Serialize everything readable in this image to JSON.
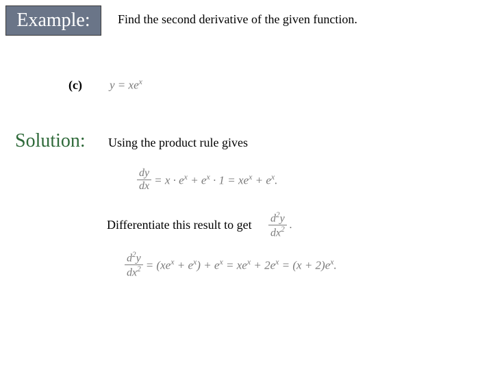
{
  "header": {
    "example_label": "Example:",
    "prompt": "Find the second derivative of the given function."
  },
  "part": {
    "label": "(c)",
    "equation_html": "y = xe<sup>x</sup>"
  },
  "solution": {
    "label": "Solution:",
    "intro": "Using the product rule gives",
    "first_deriv": {
      "frac_num": "dy",
      "frac_den": "dx",
      "rhs_html": "= x · e<sup>x</sup> + e<sup>x</sup> · 1 = xe<sup>x</sup> + e<sup>x</sup>."
    },
    "diff_text": "Differentiate this result to get",
    "second_deriv_inline": {
      "frac_num_html": "d<sup>2</sup>y",
      "frac_den_html": "dx<sup>2</sup>",
      "tail": "."
    },
    "second_deriv_full": {
      "frac_num_html": "d<sup>2</sup>y",
      "frac_den_html": "dx<sup>2</sup>",
      "rhs_html": "= (xe<sup>x</sup> + e<sup>x</sup>) + e<sup>x</sup> = xe<sup>x</sup> + 2e<sup>x</sup> = (x + 2)e<sup>x</sup>."
    }
  },
  "colors": {
    "box_bg": "#6a7588",
    "box_text": "#ffffff",
    "solution_text": "#2f6a3a",
    "math_gray": "#7a7a7a"
  }
}
